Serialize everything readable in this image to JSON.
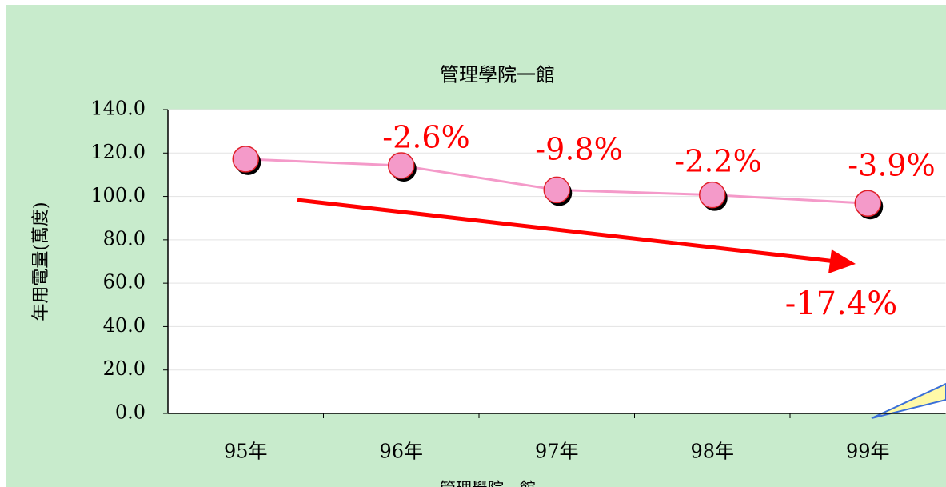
{
  "chart_data": {
    "type": "line",
    "title": "管理學院一館",
    "y_label": "年用電量(萬度)",
    "categories": [
      "95年",
      "96年",
      "97年",
      "98年",
      "99年"
    ],
    "series": [
      {
        "name": "管理學院一館",
        "color": "#f49ac9",
        "values": [
          117.2,
          114.2,
          103.0,
          100.7,
          96.8
        ]
      }
    ],
    "ylim": [
      0,
      140
    ],
    "yticks": [
      {
        "value": 0,
        "label": "0.0"
      },
      {
        "value": 20,
        "label": "20.0"
      },
      {
        "value": 40,
        "label": "40.0"
      },
      {
        "value": 60,
        "label": "60.0"
      },
      {
        "value": 80,
        "label": "80.0"
      },
      {
        "value": 100,
        "label": "100.0"
      },
      {
        "value": 120,
        "label": "120.0"
      },
      {
        "value": 140,
        "label": "140.0"
      }
    ],
    "grid": true,
    "change_labels": [
      "-2.6%",
      "-9.8%",
      "-2.2%",
      "-3.9%"
    ],
    "total_change_label": "-17.4%"
  }
}
